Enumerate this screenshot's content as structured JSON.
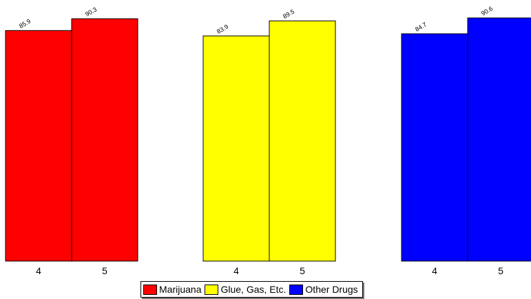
{
  "chart_data": {
    "type": "bar",
    "title": "",
    "xlabel": "",
    "ylabel": "",
    "ylim": [
      0,
      93
    ],
    "grid": false,
    "legend_position": "bottom",
    "groups": [
      {
        "name": "Marijuana",
        "color": "#ff0000",
        "categories": [
          "4",
          "5"
        ],
        "values": [
          85.9,
          90.3
        ],
        "labels": [
          "85.9",
          "90.3"
        ]
      },
      {
        "name": "Glue, Gas, Etc.",
        "color": "#ffff00",
        "categories": [
          "4",
          "5"
        ],
        "values": [
          83.9,
          89.5
        ],
        "labels": [
          "83.9",
          "89.5"
        ]
      },
      {
        "name": "Other Drugs",
        "color": "#0000ff",
        "categories": [
          "4",
          "5"
        ],
        "values": [
          84.7,
          90.6
        ],
        "labels": [
          "84.7",
          "90.6"
        ]
      }
    ]
  },
  "legend": {
    "items": [
      {
        "label": "Marijuana",
        "color": "#ff0000"
      },
      {
        "label": "Glue, Gas, Etc.",
        "color": "#ffff00"
      },
      {
        "label": "Other Drugs",
        "color": "#0000ff"
      }
    ]
  }
}
